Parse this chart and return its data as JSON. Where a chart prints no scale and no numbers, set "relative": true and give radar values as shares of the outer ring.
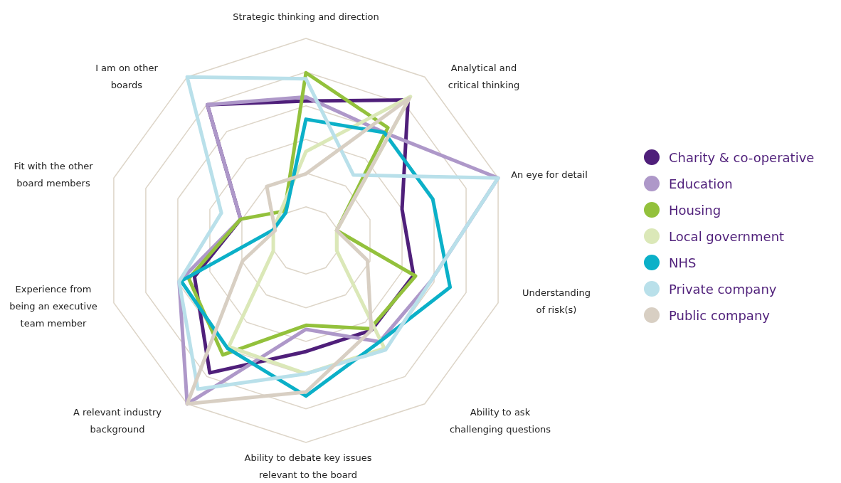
{
  "chart_data": {
    "type": "radar",
    "relative": true,
    "legend": "right",
    "grid": true,
    "categories": [
      "Strategic thinking and direction",
      "Analytical and\ncritical thinking",
      "An eye for detail",
      "Understanding\nof risk(s)",
      "Ability to ask\nchallenging questions",
      "Ability to debate key issues\nrelevant to the board",
      "A relevant industry\nbackground",
      "Experience from\nbeing an executive\nteam member",
      "Fit with the other\nboard members",
      "I am on other\nboards"
    ],
    "series": [
      {
        "name": "Charity & co-operative",
        "color": "#4f1f7a",
        "values": [
          0.69,
          0.86,
          0.5,
          0.56,
          0.55,
          0.55,
          0.81,
          0.58,
          0.34,
          0.83
        ]
      },
      {
        "name": "Education",
        "color": "#ae98c9",
        "values": [
          0.71,
          0.66,
          1.0,
          0.65,
          0.62,
          0.44,
          1.0,
          0.66,
          0.34,
          0.83
        ]
      },
      {
        "name": "Housing",
        "color": "#93c13c",
        "values": [
          0.83,
          0.69,
          0.16,
          0.57,
          0.54,
          0.42,
          0.7,
          0.61,
          0.34,
          0.18
        ]
      },
      {
        "name": "Local government",
        "color": "#dbe8b8",
        "values": [
          0.44,
          0.88,
          0.16,
          0.16,
          0.66,
          0.66,
          0.65,
          0.17,
          0.17,
          0.2
        ]
      },
      {
        "name": "NHS",
        "color": "#0bb0c8",
        "values": [
          0.6,
          0.66,
          0.66,
          0.75,
          0.62,
          0.77,
          0.66,
          0.65,
          0.17,
          0.17
        ]
      },
      {
        "name": "Private company",
        "color": "#b9e0ea",
        "values": [
          0.8,
          0.4,
          1.0,
          0.65,
          0.67,
          0.66,
          0.91,
          0.66,
          0.44,
          1.0
        ]
      },
      {
        "name": "Public company",
        "color": "#d8cfc3",
        "values": [
          0.33,
          0.87,
          0.16,
          0.32,
          0.55,
          0.75,
          1.0,
          0.33,
          0.16,
          0.33
        ]
      }
    ]
  }
}
